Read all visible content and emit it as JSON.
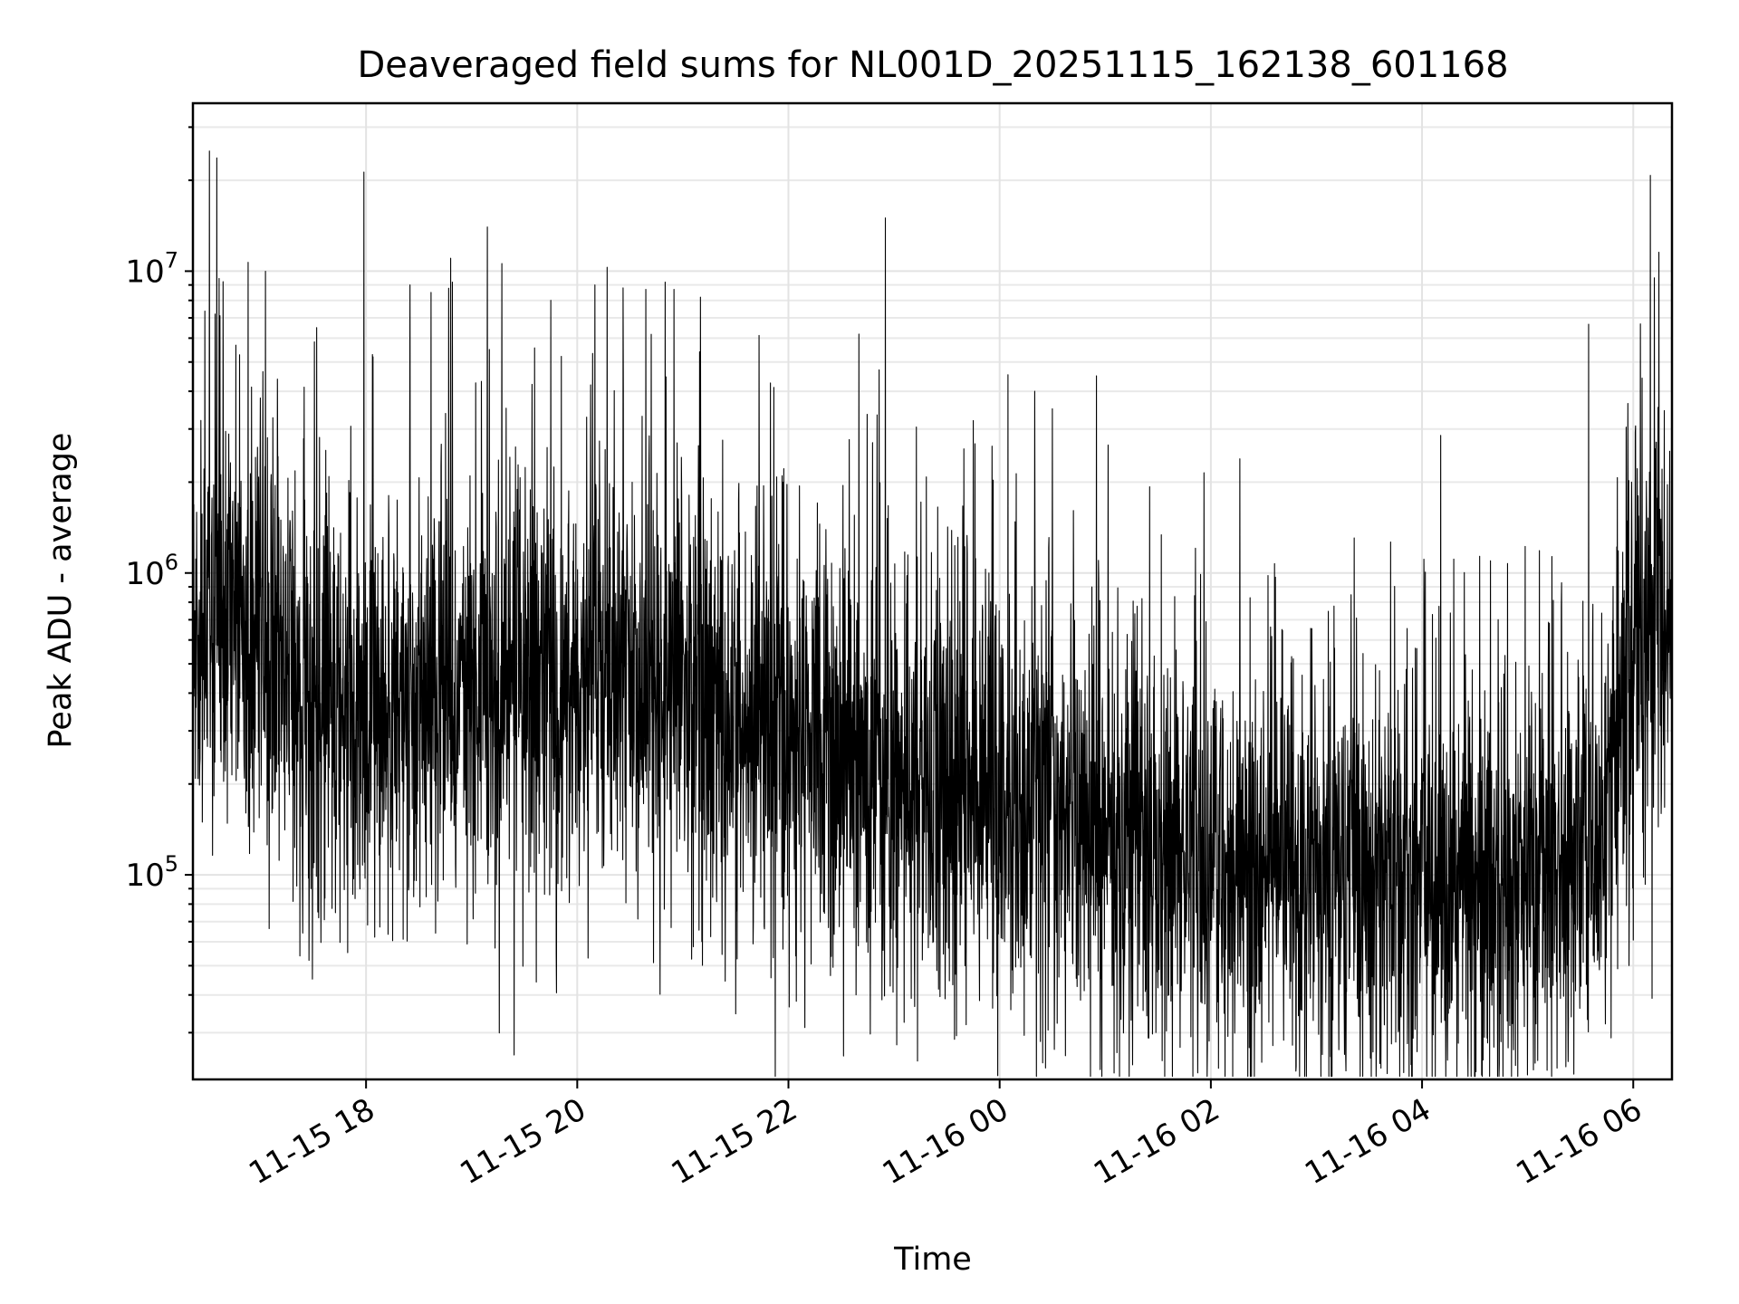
{
  "chart_data": {
    "type": "line",
    "title": "Deaveraged field sums for NL001D_20251115_162138_601168",
    "xlabel": "Time",
    "ylabel": "Peak ADU - average",
    "x_axis_type": "datetime",
    "y_scale": "log",
    "xlim": [
      "2025-11-15 16:21:38",
      "2025-11-16 06:22:00"
    ],
    "ylim": [
      21000,
      36000000
    ],
    "x_ticks": [
      {
        "value": "2025-11-15 18:00",
        "label": "11-15 18"
      },
      {
        "value": "2025-11-15 20:00",
        "label": "11-15 20"
      },
      {
        "value": "2025-11-15 22:00",
        "label": "11-15 22"
      },
      {
        "value": "2025-11-16 00:00",
        "label": "11-16 00"
      },
      {
        "value": "2025-11-16 02:00",
        "label": "11-16 02"
      },
      {
        "value": "2025-11-16 04:00",
        "label": "11-16 04"
      },
      {
        "value": "2025-11-16 06:00",
        "label": "11-16 06"
      }
    ],
    "y_ticks": [
      {
        "value": 100000,
        "base": "10",
        "exponent": "5"
      },
      {
        "value": 1000000,
        "base": "10",
        "exponent": "6"
      },
      {
        "value": 10000000,
        "base": "10",
        "exponent": "7"
      }
    ],
    "grid": true,
    "legend": "none",
    "line_color": "#000000",
    "series": [
      {
        "values_note": "dense noisy time series, approximately 5000 samples",
        "baseline_profile": [
          {
            "time": "2025-11-15 16:22",
            "value": 700000
          },
          {
            "time": "2025-11-15 17:00",
            "value": 600000
          },
          {
            "time": "2025-11-15 17:30",
            "value": 350000
          },
          {
            "time": "2025-11-15 18:30",
            "value": 380000
          },
          {
            "time": "2025-11-15 19:30",
            "value": 400000
          },
          {
            "time": "2025-11-15 20:30",
            "value": 450000
          },
          {
            "time": "2025-11-15 21:30",
            "value": 380000
          },
          {
            "time": "2025-11-15 22:30",
            "value": 250000
          },
          {
            "time": "2025-11-15 23:00",
            "value": 180000
          },
          {
            "time": "2025-11-16 00:00",
            "value": 200000
          },
          {
            "time": "2025-11-16 01:00",
            "value": 140000
          },
          {
            "time": "2025-11-16 02:00",
            "value": 110000
          },
          {
            "time": "2025-11-16 03:00",
            "value": 100000
          },
          {
            "time": "2025-11-16 04:00",
            "value": 95000
          },
          {
            "time": "2025-11-16 05:00",
            "value": 90000
          },
          {
            "time": "2025-11-16 05:45",
            "value": 150000
          },
          {
            "time": "2025-11-16 06:00",
            "value": 650000
          },
          {
            "time": "2025-11-16 06:22",
            "value": 700000
          }
        ],
        "peaks": [
          {
            "time": "2025-11-15 16:31",
            "value": 25000000
          },
          {
            "time": "2025-11-15 17:00",
            "value": 3800000
          },
          {
            "time": "2025-11-15 17:32",
            "value": 6500000
          },
          {
            "time": "2025-11-15 18:25",
            "value": 9000000
          },
          {
            "time": "2025-11-15 18:37",
            "value": 8500000
          },
          {
            "time": "2025-11-15 18:49",
            "value": 9200000
          },
          {
            "time": "2025-11-15 19:10",
            "value": 5500000
          },
          {
            "time": "2025-11-15 19:45",
            "value": 8000000
          },
          {
            "time": "2025-11-15 20:10",
            "value": 9000000
          },
          {
            "time": "2025-11-15 20:17",
            "value": 10300000
          },
          {
            "time": "2025-11-15 20:26",
            "value": 8800000
          },
          {
            "time": "2025-11-15 20:39",
            "value": 8700000
          },
          {
            "time": "2025-11-15 20:50",
            "value": 9200000
          },
          {
            "time": "2025-11-15 20:55",
            "value": 8700000
          },
          {
            "time": "2025-11-15 21:10",
            "value": 8200000
          },
          {
            "time": "2025-11-15 22:55",
            "value": 15000000
          },
          {
            "time": "2025-11-15 23:45",
            "value": 3200000
          },
          {
            "time": "2025-11-16 00:20",
            "value": 4000000
          },
          {
            "time": "2025-11-16 00:30",
            "value": 3500000
          },
          {
            "time": "2025-11-16 00:55",
            "value": 4500000
          },
          {
            "time": "2025-11-16 05:59",
            "value": 2000000
          },
          {
            "time": "2025-11-16 06:12",
            "value": 9500000
          },
          {
            "time": "2025-11-16 06:22",
            "value": 17000000
          }
        ]
      }
    ]
  }
}
